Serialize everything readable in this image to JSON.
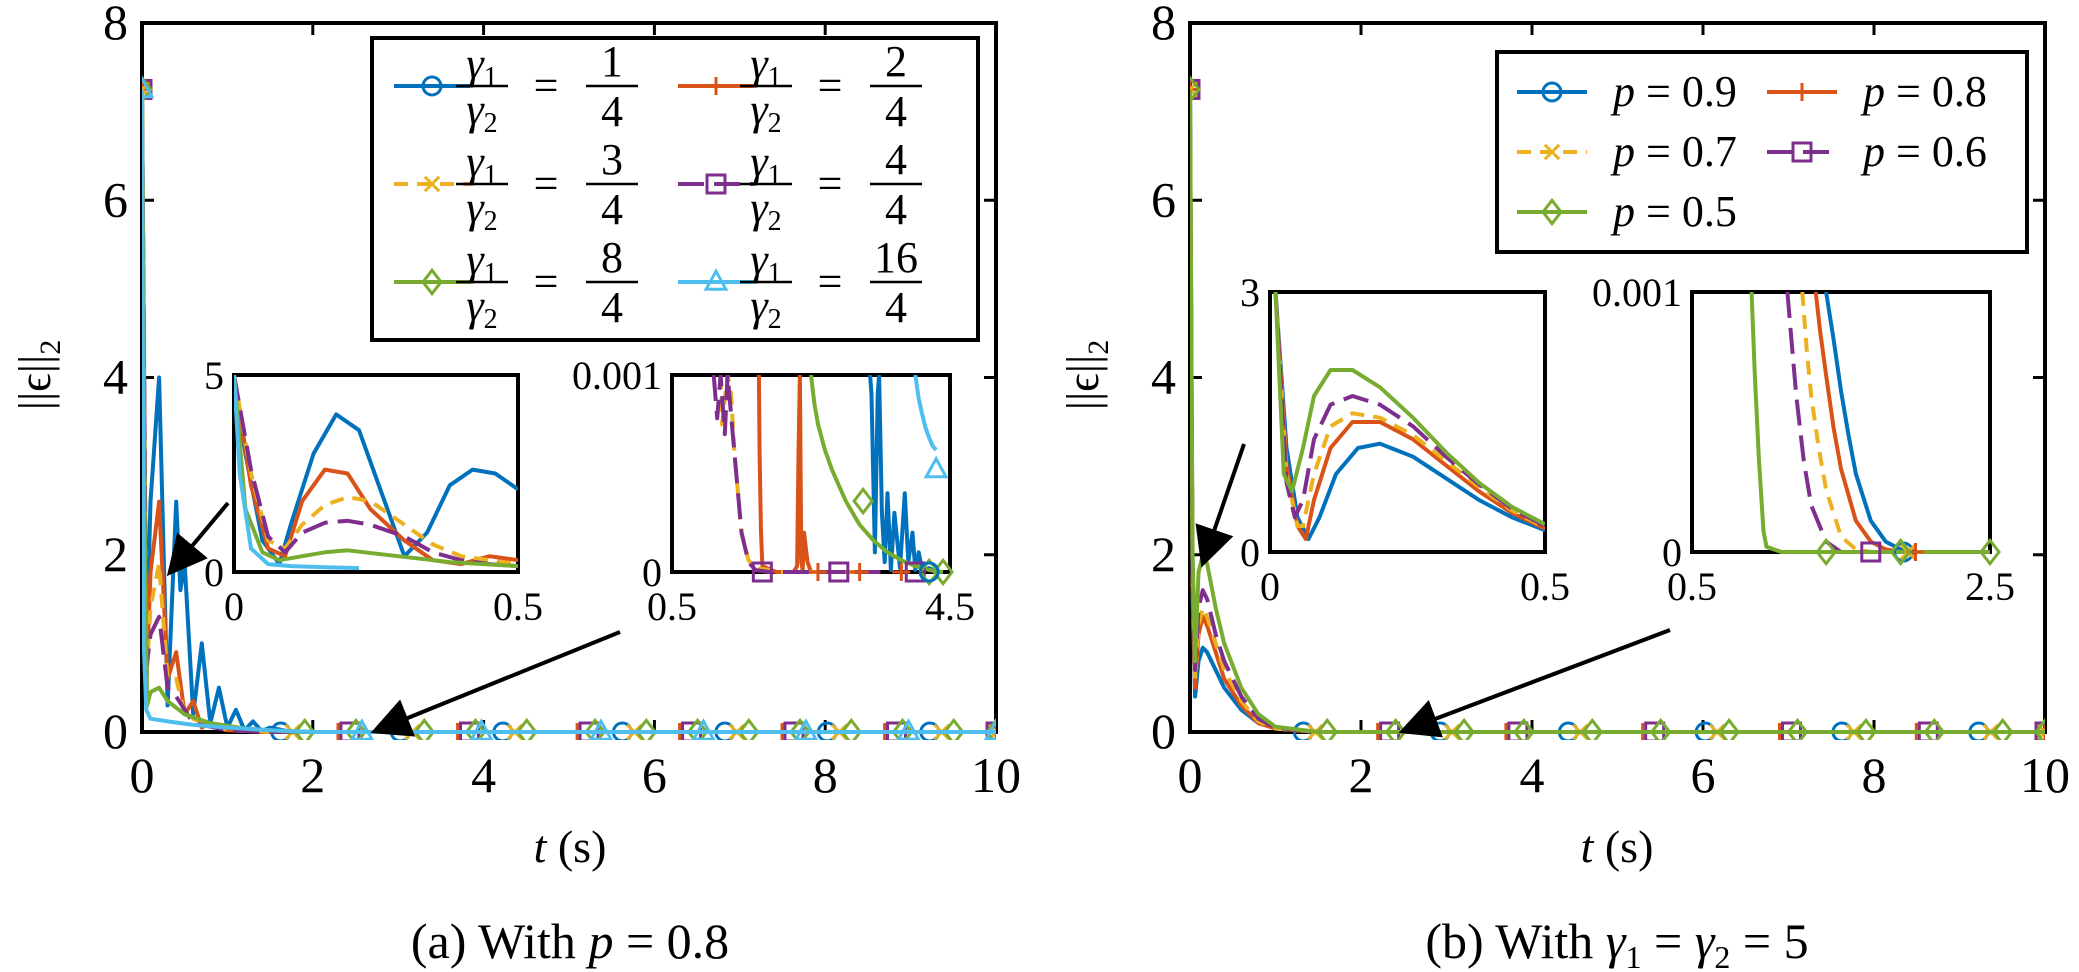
{
  "colors": {
    "blue": "#0072BD",
    "orange": "#D95319",
    "yellow": "#EDB120",
    "purple": "#7E2F8E",
    "green": "#77AC30",
    "cyan": "#4DBEEE"
  },
  "chart_data": [
    {
      "type": "line",
      "caption": "(a) With p = 0.8",
      "caption_parts": {
        "prefix": "(a) With ",
        "var": "p",
        "suffix": " = 0.8"
      },
      "xlabel": {
        "var": "t",
        "unit": " (s)"
      },
      "ylabel": "||ϵ||",
      "ylabel_sub": "2",
      "xlim": [
        0,
        10
      ],
      "ylim": [
        0,
        8
      ],
      "xticks": [
        "0",
        "2",
        "4",
        "6",
        "8",
        "10"
      ],
      "yticks": [
        "0",
        "2",
        "4",
        "6",
        "8"
      ],
      "legend": {
        "position": "top-right",
        "columns": 2,
        "entries": [
          {
            "num": "γ1",
            "den": "γ2",
            "eq": "=",
            "vnum": "1",
            "vden": "4",
            "color_key": "blue",
            "marker": "circle",
            "dash": "solid"
          },
          {
            "num": "γ1",
            "den": "γ2",
            "eq": "=",
            "vnum": "2",
            "vden": "4",
            "color_key": "orange",
            "marker": "plus",
            "dash": "solid"
          },
          {
            "num": "γ1",
            "den": "γ2",
            "eq": "=",
            "vnum": "3",
            "vden": "4",
            "color_key": "yellow",
            "marker": "x",
            "dash": "dashed"
          },
          {
            "num": "γ1",
            "den": "γ2",
            "eq": "=",
            "vnum": "4",
            "vden": "4",
            "color_key": "purple",
            "marker": "square",
            "dash": "longdash"
          },
          {
            "num": "γ1",
            "den": "γ2",
            "eq": "=",
            "vnum": "8",
            "vden": "4",
            "color_key": "green",
            "marker": "diamond",
            "dash": "solid"
          },
          {
            "num": "γ1",
            "den": "γ2",
            "eq": "=",
            "vnum": "16",
            "vden": "4",
            "color_key": "cyan",
            "marker": "triangle",
            "dash": "solid"
          }
        ]
      },
      "series": [
        {
          "ratio": "1/4",
          "color_key": "blue",
          "marker": "circle",
          "dash": "solid",
          "x": [
            0,
            0.05,
            0.1,
            0.2,
            0.3,
            0.4,
            0.45,
            0.5,
            0.6,
            0.7,
            0.8,
            0.9,
            1.0,
            1.1,
            1.2,
            1.3,
            1.4,
            1.5,
            1.7,
            2.0,
            3.0,
            10
          ],
          "y": [
            7.25,
            0.8,
            2.6,
            4.0,
            0.3,
            2.6,
            1.6,
            1.9,
            0.2,
            1.0,
            0.1,
            0.5,
            0.05,
            0.25,
            0.02,
            0.12,
            0.01,
            0.05,
            0.01,
            0,
            0,
            0
          ]
        },
        {
          "ratio": "2/4",
          "color_key": "orange",
          "marker": "plus",
          "dash": "solid",
          "x": [
            0,
            0.05,
            0.1,
            0.2,
            0.3,
            0.4,
            0.5,
            0.6,
            0.7,
            0.8,
            1.0,
            1.5,
            2.0,
            10
          ],
          "y": [
            7.25,
            0.5,
            1.8,
            2.6,
            0.6,
            0.9,
            0.2,
            0.35,
            0.05,
            0.1,
            0.02,
            0,
            0,
            0
          ]
        },
        {
          "ratio": "3/4",
          "color_key": "yellow",
          "marker": "x",
          "dash": "dashed",
          "x": [
            0,
            0.05,
            0.1,
            0.2,
            0.3,
            0.4,
            0.5,
            0.7,
            1.0,
            1.5,
            10
          ],
          "y": [
            7.25,
            0.6,
            1.4,
            1.9,
            0.6,
            0.6,
            0.2,
            0.1,
            0.02,
            0,
            0
          ]
        },
        {
          "ratio": "4/4",
          "color_key": "purple",
          "marker": "square",
          "dash": "longdash",
          "x": [
            0,
            0.05,
            0.1,
            0.2,
            0.3,
            0.4,
            0.6,
            1.0,
            1.5,
            10
          ],
          "y": [
            7.25,
            0.7,
            1.1,
            1.3,
            0.5,
            0.4,
            0.1,
            0.02,
            0,
            0
          ]
        },
        {
          "ratio": "8/4",
          "color_key": "green",
          "marker": "diamond",
          "dash": "solid",
          "x": [
            0,
            0.03,
            0.06,
            0.1,
            0.2,
            0.3,
            0.5,
            0.8,
            1.2,
            1.8,
            10
          ],
          "y": [
            7.25,
            2.5,
            0.3,
            0.45,
            0.5,
            0.35,
            0.2,
            0.1,
            0.04,
            0,
            0
          ]
        },
        {
          "ratio": "16/4",
          "color_key": "cyan",
          "marker": "triangle",
          "dash": "solid",
          "x": [
            0,
            0.02,
            0.05,
            0.1,
            0.3,
            0.6,
            1.0,
            1.5,
            2.0,
            10
          ],
          "y": [
            7.25,
            1.0,
            0.25,
            0.15,
            0.12,
            0.08,
            0.05,
            0.02,
            0,
            0
          ]
        }
      ],
      "insets": [
        {
          "xlim": [
            0,
            0.5
          ],
          "ylim": [
            0,
            5
          ],
          "xticks": [
            "0",
            "0.5"
          ],
          "yticks": [
            "0",
            "5"
          ]
        },
        {
          "xlim": [
            0.5,
            4.5
          ],
          "ylim": [
            0,
            0.001
          ],
          "xticks": [
            "0.5",
            "4.5"
          ],
          "yticks": [
            "0",
            "0.001"
          ]
        }
      ]
    },
    {
      "type": "line",
      "caption": "(b) With γ1 = γ2 = 5",
      "caption_parts": {
        "prefix": "(b) With ",
        "g": "γ",
        "s1": "1",
        "mid": " = ",
        "s2": "2",
        "suffix": " = 5"
      },
      "xlabel": {
        "var": "t",
        "unit": " (s)"
      },
      "ylabel": "||ϵ||",
      "ylabel_sub": "2",
      "xlim": [
        0,
        10
      ],
      "ylim": [
        0,
        8
      ],
      "xticks": [
        "0",
        "2",
        "4",
        "6",
        "8",
        "10"
      ],
      "yticks": [
        "0",
        "2",
        "4",
        "6",
        "8"
      ],
      "legend": {
        "position": "top-right",
        "columns": 2,
        "entries": [
          {
            "var": "p",
            "eq": " = ",
            "value": "0.9",
            "color_key": "blue",
            "marker": "circle",
            "dash": "solid"
          },
          {
            "var": "p",
            "eq": " = ",
            "value": "0.8",
            "color_key": "orange",
            "marker": "plus",
            "dash": "solid"
          },
          {
            "var": "p",
            "eq": " = ",
            "value": "0.7",
            "color_key": "yellow",
            "marker": "x",
            "dash": "dashed"
          },
          {
            "var": "p",
            "eq": " = ",
            "value": "0.6",
            "color_key": "purple",
            "marker": "square",
            "dash": "longdash"
          },
          {
            "var": "p",
            "eq": " = ",
            "value": "0.5",
            "color_key": "green",
            "marker": "diamond",
            "dash": "solid"
          }
        ]
      },
      "series": [
        {
          "p": "0.9",
          "color_key": "blue",
          "marker": "circle",
          "dash": "solid",
          "x": [
            0,
            0.03,
            0.06,
            0.1,
            0.15,
            0.2,
            0.3,
            0.4,
            0.6,
            0.8,
            1.0,
            1.5,
            10
          ],
          "y": [
            7.25,
            1.5,
            0.4,
            0.8,
            0.95,
            0.9,
            0.7,
            0.5,
            0.25,
            0.1,
            0.04,
            0,
            0
          ]
        },
        {
          "p": "0.8",
          "color_key": "orange",
          "marker": "plus",
          "dash": "solid",
          "x": [
            0,
            0.03,
            0.06,
            0.1,
            0.15,
            0.2,
            0.3,
            0.4,
            0.6,
            0.8,
            1.0,
            1.5,
            10
          ],
          "y": [
            7.25,
            1.6,
            0.5,
            1.1,
            1.3,
            1.2,
            0.9,
            0.6,
            0.3,
            0.1,
            0.04,
            0,
            0
          ]
        },
        {
          "p": "0.7",
          "color_key": "yellow",
          "marker": "x",
          "dash": "dashed",
          "x": [
            0,
            0.03,
            0.06,
            0.1,
            0.15,
            0.2,
            0.3,
            0.4,
            0.6,
            0.8,
            1.0,
            1.5,
            10
          ],
          "y": [
            7.25,
            1.7,
            0.6,
            1.2,
            1.4,
            1.3,
            1.0,
            0.7,
            0.35,
            0.12,
            0.04,
            0,
            0
          ]
        },
        {
          "p": "0.6",
          "color_key": "purple",
          "marker": "square",
          "dash": "longdash",
          "x": [
            0,
            0.03,
            0.06,
            0.1,
            0.15,
            0.2,
            0.3,
            0.4,
            0.6,
            0.8,
            1.0,
            1.5,
            10
          ],
          "y": [
            7.25,
            1.8,
            0.7,
            1.4,
            1.6,
            1.5,
            1.1,
            0.8,
            0.4,
            0.15,
            0.05,
            0,
            0
          ]
        },
        {
          "p": "0.5",
          "color_key": "green",
          "marker": "diamond",
          "dash": "solid",
          "x": [
            0,
            0.03,
            0.06,
            0.1,
            0.15,
            0.2,
            0.3,
            0.4,
            0.6,
            0.8,
            1.0,
            1.5,
            10
          ],
          "y": [
            7.25,
            2.0,
            0.8,
            1.8,
            2.0,
            1.9,
            1.4,
            1.0,
            0.5,
            0.2,
            0.06,
            0,
            0
          ]
        }
      ],
      "insets": [
        {
          "xlim": [
            0,
            0.5
          ],
          "ylim": [
            0,
            3
          ],
          "xticks": [
            "0",
            "0.5"
          ],
          "yticks": [
            "0",
            "3"
          ]
        },
        {
          "xlim": [
            0.5,
            2.5
          ],
          "ylim": [
            0,
            0.001
          ],
          "xticks": [
            "0.5",
            "2.5"
          ],
          "yticks": [
            "0",
            "0.001"
          ]
        }
      ]
    }
  ]
}
